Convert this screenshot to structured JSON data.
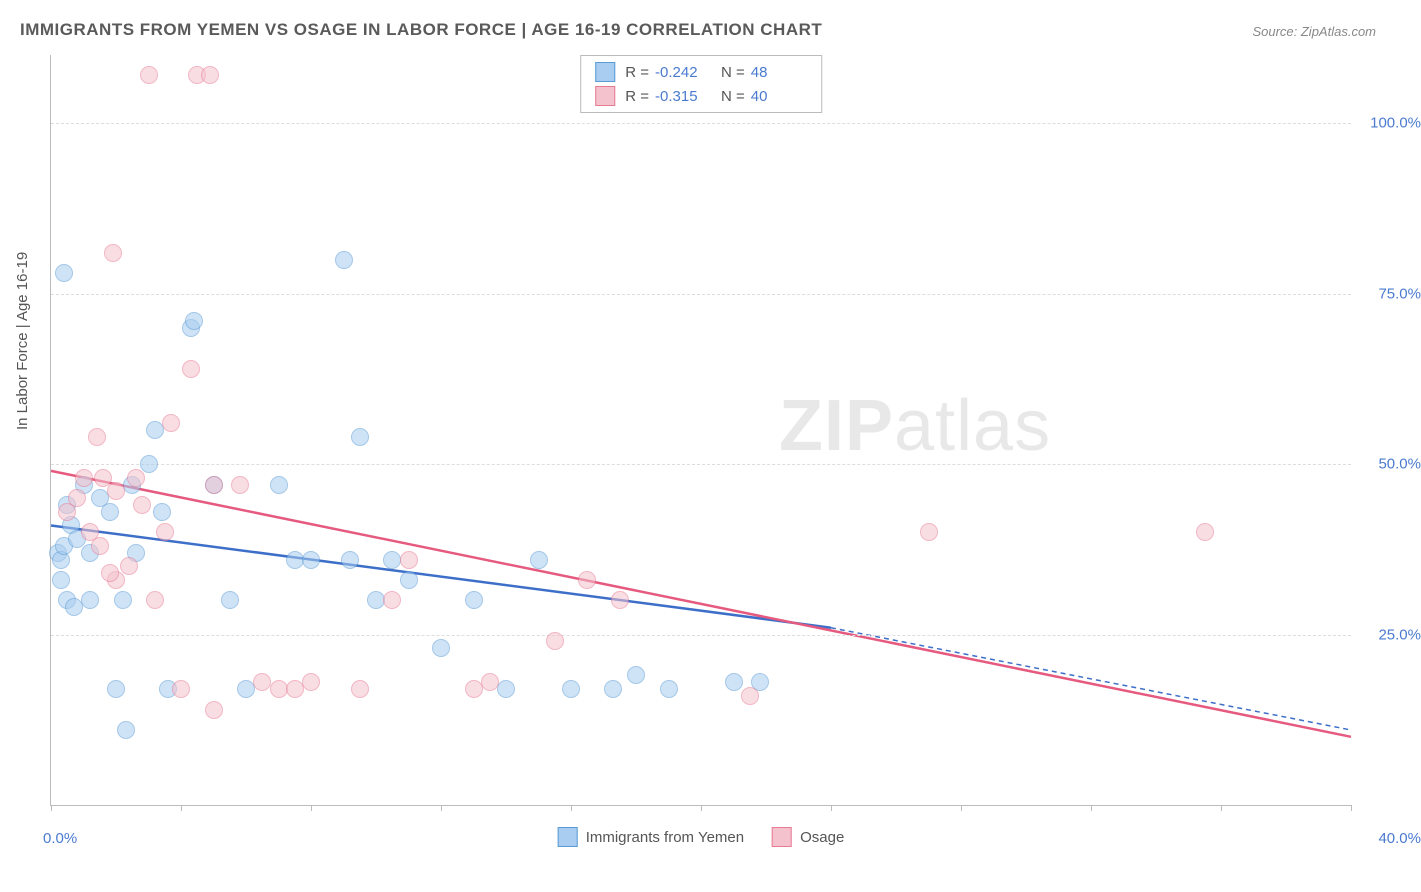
{
  "title": "IMMIGRANTS FROM YEMEN VS OSAGE IN LABOR FORCE | AGE 16-19 CORRELATION CHART",
  "source": "Source: ZipAtlas.com",
  "watermark": {
    "zip": "ZIP",
    "atlas": "atlas"
  },
  "y_axis_label": "In Labor Force | Age 16-19",
  "chart": {
    "type": "scatter",
    "xlim": [
      0,
      40
    ],
    "ylim": [
      0,
      110
    ],
    "x_ticks": [
      0,
      4,
      8,
      12,
      16,
      20,
      24,
      28,
      32,
      36,
      40
    ],
    "y_gridlines": [
      25,
      50,
      75,
      100
    ],
    "y_tick_labels": [
      "25.0%",
      "50.0%",
      "75.0%",
      "100.0%"
    ],
    "x_start_label": "0.0%",
    "x_end_label": "40.0%",
    "background_color": "#ffffff",
    "grid_color": "#dddddd",
    "point_radius": 8,
    "point_opacity": 0.55,
    "series": [
      {
        "name": "Immigrants from Yemen",
        "fill": "#a8cdf0",
        "stroke": "#5b9bd5",
        "trend_color": "#3d6fc9",
        "trend": {
          "x1": 0,
          "y1": 41,
          "x2": 24,
          "y2": 26,
          "dash_x2": 40,
          "dash_y2": 11
        },
        "r_label": "R =",
        "r_value": "-0.242",
        "n_label": "N =",
        "n_value": "48",
        "points": [
          {
            "x": 0.4,
            "y": 78
          },
          {
            "x": 0.2,
            "y": 37
          },
          {
            "x": 0.3,
            "y": 36
          },
          {
            "x": 0.3,
            "y": 33
          },
          {
            "x": 0.5,
            "y": 30
          },
          {
            "x": 0.4,
            "y": 38
          },
          {
            "x": 0.6,
            "y": 41
          },
          {
            "x": 0.8,
            "y": 39
          },
          {
            "x": 1.0,
            "y": 47
          },
          {
            "x": 1.2,
            "y": 37
          },
          {
            "x": 1.2,
            "y": 30
          },
          {
            "x": 1.5,
            "y": 45
          },
          {
            "x": 1.8,
            "y": 43
          },
          {
            "x": 2.0,
            "y": 17
          },
          {
            "x": 2.3,
            "y": 11
          },
          {
            "x": 2.2,
            "y": 30
          },
          {
            "x": 2.5,
            "y": 47
          },
          {
            "x": 2.6,
            "y": 37
          },
          {
            "x": 3.0,
            "y": 50
          },
          {
            "x": 3.2,
            "y": 55
          },
          {
            "x": 3.4,
            "y": 43
          },
          {
            "x": 3.6,
            "y": 17
          },
          {
            "x": 4.3,
            "y": 70
          },
          {
            "x": 4.4,
            "y": 71
          },
          {
            "x": 5.0,
            "y": 47
          },
          {
            "x": 5.5,
            "y": 30
          },
          {
            "x": 6.0,
            "y": 17
          },
          {
            "x": 7.0,
            "y": 47
          },
          {
            "x": 7.5,
            "y": 36
          },
          {
            "x": 8.0,
            "y": 36
          },
          {
            "x": 9.0,
            "y": 80
          },
          {
            "x": 9.2,
            "y": 36
          },
          {
            "x": 9.5,
            "y": 54
          },
          {
            "x": 10.0,
            "y": 30
          },
          {
            "x": 10.5,
            "y": 36
          },
          {
            "x": 11.0,
            "y": 33
          },
          {
            "x": 12.0,
            "y": 23
          },
          {
            "x": 13.0,
            "y": 30
          },
          {
            "x": 14.0,
            "y": 17
          },
          {
            "x": 15.0,
            "y": 36
          },
          {
            "x": 16.0,
            "y": 17
          },
          {
            "x": 17.3,
            "y": 17
          },
          {
            "x": 18.0,
            "y": 19
          },
          {
            "x": 19.0,
            "y": 17
          },
          {
            "x": 21.0,
            "y": 18
          },
          {
            "x": 21.8,
            "y": 18
          },
          {
            "x": 0.5,
            "y": 44
          },
          {
            "x": 0.7,
            "y": 29
          }
        ]
      },
      {
        "name": "Osage",
        "fill": "#f4c2cd",
        "stroke": "#e87b94",
        "trend_color": "#e55a7e",
        "trend": {
          "x1": 0,
          "y1": 49,
          "x2": 40,
          "y2": 10,
          "dash_x2": 40,
          "dash_y2": 10
        },
        "r_label": "R =",
        "r_value": "-0.315",
        "n_label": "N =",
        "n_value": "40",
        "points": [
          {
            "x": 0.5,
            "y": 43
          },
          {
            "x": 0.8,
            "y": 45
          },
          {
            "x": 1.0,
            "y": 48
          },
          {
            "x": 1.2,
            "y": 40
          },
          {
            "x": 1.4,
            "y": 54
          },
          {
            "x": 1.5,
            "y": 38
          },
          {
            "x": 1.6,
            "y": 48
          },
          {
            "x": 1.9,
            "y": 81
          },
          {
            "x": 2.0,
            "y": 46
          },
          {
            "x": 2.0,
            "y": 33
          },
          {
            "x": 2.4,
            "y": 35
          },
          {
            "x": 2.6,
            "y": 48
          },
          {
            "x": 2.8,
            "y": 44
          },
          {
            "x": 3.0,
            "y": 107
          },
          {
            "x": 3.2,
            "y": 30
          },
          {
            "x": 3.5,
            "y": 40
          },
          {
            "x": 3.7,
            "y": 56
          },
          {
            "x": 4.0,
            "y": 17
          },
          {
            "x": 4.3,
            "y": 64
          },
          {
            "x": 4.5,
            "y": 107
          },
          {
            "x": 4.9,
            "y": 107
          },
          {
            "x": 5.0,
            "y": 47
          },
          {
            "x": 5.0,
            "y": 14
          },
          {
            "x": 5.8,
            "y": 47
          },
          {
            "x": 6.5,
            "y": 18
          },
          {
            "x": 7.0,
            "y": 17
          },
          {
            "x": 7.5,
            "y": 17
          },
          {
            "x": 8.0,
            "y": 18
          },
          {
            "x": 9.5,
            "y": 17
          },
          {
            "x": 10.5,
            "y": 30
          },
          {
            "x": 11.0,
            "y": 36
          },
          {
            "x": 13.0,
            "y": 17
          },
          {
            "x": 13.5,
            "y": 18
          },
          {
            "x": 15.5,
            "y": 24
          },
          {
            "x": 16.5,
            "y": 33
          },
          {
            "x": 17.5,
            "y": 30
          },
          {
            "x": 21.5,
            "y": 16
          },
          {
            "x": 27.0,
            "y": 40
          },
          {
            "x": 35.5,
            "y": 40
          },
          {
            "x": 1.8,
            "y": 34
          }
        ]
      }
    ]
  },
  "bottom_legend": [
    {
      "label": "Immigrants from Yemen",
      "fill": "#a8cdf0",
      "stroke": "#5b9bd5"
    },
    {
      "label": "Osage",
      "fill": "#f4c2cd",
      "stroke": "#e87b94"
    }
  ]
}
